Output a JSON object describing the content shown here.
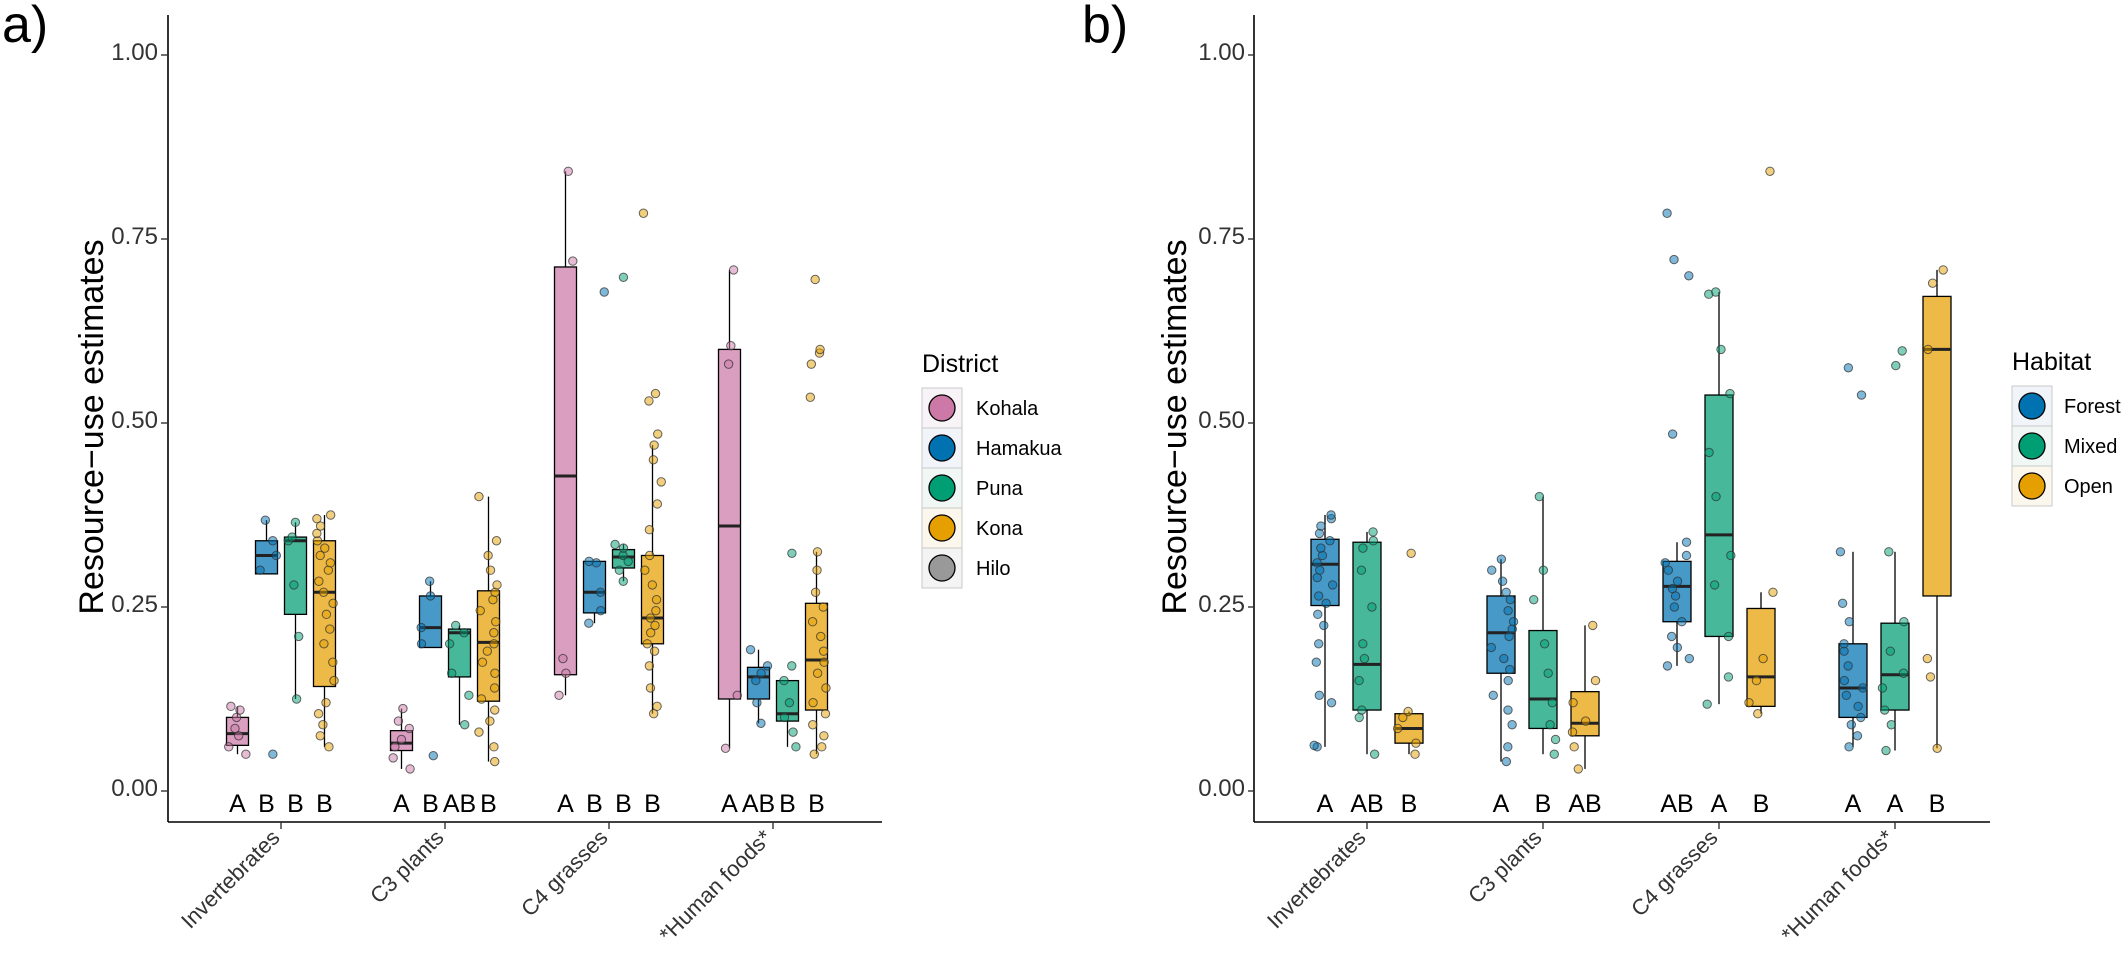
{
  "colors": {
    "Kohala": "#CC79A7",
    "Hamakua": "#0072B2",
    "Puna": "#009E73",
    "Kona": "#E69F00",
    "Hilo": "#999999",
    "Forest": "#0072B2",
    "Mixed": "#009E73",
    "Open": "#E69F00"
  },
  "chart_data": [
    {
      "panel_label": "a)",
      "type": "box",
      "ylabel": "Resource−use estimates",
      "ylim": [
        0,
        1
      ],
      "yticks": [
        "0.00",
        "0.25",
        "0.50",
        "0.75",
        "1.00"
      ],
      "categories": [
        "Invertebrates",
        "C3 plants",
        "C4 grasses",
        "*Human foods*"
      ],
      "legend": {
        "title": "District",
        "items": [
          "Kohala",
          "Hamakua",
          "Puna",
          "Kona",
          "Hilo"
        ],
        "position": "right"
      },
      "groups": [
        "Kohala",
        "Hamakua",
        "Puna",
        "Kona"
      ],
      "letters": [
        [
          "A",
          "B",
          "B",
          "B"
        ],
        [
          "A",
          "B",
          "AB",
          "B"
        ],
        [
          "A",
          "B",
          "B",
          "B"
        ],
        [
          "A",
          "AB",
          "B",
          "B"
        ]
      ],
      "boxes": [
        [
          {
            "q1": 0.062,
            "median": 0.078,
            "q3": 0.1,
            "min": 0.05,
            "max": 0.115,
            "points": [
              0.05,
              0.06,
              0.075,
              0.085,
              0.1,
              0.11,
              0.115
            ]
          },
          {
            "q1": 0.295,
            "median": 0.32,
            "q3": 0.34,
            "min": 0.295,
            "max": 0.368,
            "points": [
              0.05,
              0.3,
              0.32,
              0.34,
              0.368
            ]
          },
          {
            "q1": 0.24,
            "median": 0.34,
            "q3": 0.345,
            "min": 0.125,
            "max": 0.365,
            "points": [
              0.125,
              0.21,
              0.28,
              0.34,
              0.345,
              0.365
            ]
          },
          {
            "q1": 0.142,
            "median": 0.27,
            "q3": 0.34,
            "min": 0.06,
            "max": 0.375,
            "points": [
              0.06,
              0.075,
              0.09,
              0.105,
              0.12,
              0.15,
              0.175,
              0.2,
              0.22,
              0.24,
              0.255,
              0.27,
              0.285,
              0.3,
              0.31,
              0.32,
              0.33,
              0.34,
              0.35,
              0.36,
              0.37,
              0.375
            ]
          }
        ],
        [
          {
            "q1": 0.055,
            "median": 0.065,
            "q3": 0.082,
            "min": 0.03,
            "max": 0.112,
            "points": [
              0.03,
              0.045,
              0.06,
              0.07,
              0.085,
              0.095,
              0.112
            ]
          },
          {
            "q1": 0.195,
            "median": 0.222,
            "q3": 0.265,
            "min": 0.195,
            "max": 0.285,
            "points": [
              0.048,
              0.2,
              0.222,
              0.265,
              0.285
            ]
          },
          {
            "q1": 0.155,
            "median": 0.215,
            "q3": 0.22,
            "min": 0.09,
            "max": 0.225,
            "points": [
              0.09,
              0.13,
              0.16,
              0.2,
              0.215,
              0.225
            ]
          },
          {
            "q1": 0.122,
            "median": 0.202,
            "q3": 0.272,
            "min": 0.04,
            "max": 0.4,
            "points": [
              0.04,
              0.06,
              0.08,
              0.095,
              0.11,
              0.125,
              0.14,
              0.16,
              0.175,
              0.19,
              0.2,
              0.215,
              0.23,
              0.245,
              0.26,
              0.27,
              0.28,
              0.3,
              0.32,
              0.34,
              0.4
            ]
          }
        ],
        [
          {
            "q1": 0.158,
            "median": 0.428,
            "q3": 0.712,
            "min": 0.13,
            "max": 0.842,
            "points": [
              0.13,
              0.16,
              0.18,
              0.72,
              0.842
            ]
          },
          {
            "q1": 0.242,
            "median": 0.27,
            "q3": 0.312,
            "min": 0.228,
            "max": 0.312,
            "points": [
              0.228,
              0.245,
              0.27,
              0.31,
              0.312,
              0.678
            ]
          },
          {
            "q1": 0.303,
            "median": 0.318,
            "q3": 0.328,
            "min": 0.285,
            "max": 0.335,
            "points": [
              0.285,
              0.3,
              0.312,
              0.32,
              0.33,
              0.335,
              0.698
            ]
          },
          {
            "q1": 0.2,
            "median": 0.235,
            "q3": 0.32,
            "min": 0.105,
            "max": 0.47,
            "points": [
              0.105,
              0.115,
              0.14,
              0.17,
              0.19,
              0.2,
              0.215,
              0.225,
              0.235,
              0.245,
              0.26,
              0.28,
              0.3,
              0.32,
              0.355,
              0.39,
              0.42,
              0.45,
              0.47,
              0.485,
              0.53,
              0.54,
              0.785
            ]
          }
        ],
        [
          {
            "q1": 0.125,
            "median": 0.36,
            "q3": 0.6,
            "min": 0.058,
            "max": 0.708,
            "points": [
              0.058,
              0.13,
              0.58,
              0.605,
              0.708
            ]
          },
          {
            "q1": 0.125,
            "median": 0.155,
            "q3": 0.168,
            "min": 0.092,
            "max": 0.192,
            "points": [
              0.092,
              0.12,
              0.15,
              0.16,
              0.17,
              0.192
            ]
          },
          {
            "q1": 0.095,
            "median": 0.105,
            "q3": 0.15,
            "min": 0.06,
            "max": 0.15,
            "points": [
              0.06,
              0.08,
              0.1,
              0.12,
              0.15,
              0.17,
              0.323
            ]
          },
          {
            "q1": 0.11,
            "median": 0.178,
            "q3": 0.255,
            "min": 0.05,
            "max": 0.325,
            "points": [
              0.05,
              0.06,
              0.075,
              0.09,
              0.105,
              0.12,
              0.14,
              0.16,
              0.175,
              0.19,
              0.21,
              0.23,
              0.25,
              0.27,
              0.3,
              0.325,
              0.535,
              0.58,
              0.595,
              0.6,
              0.695
            ]
          }
        ]
      ]
    },
    {
      "panel_label": "b)",
      "type": "box",
      "ylabel": "Resource−use estimates",
      "ylim": [
        0,
        1
      ],
      "yticks": [
        "0.00",
        "0.25",
        "0.50",
        "0.75",
        "1.00"
      ],
      "categories": [
        "Invertebrates",
        "C3 plants",
        "C4 grasses",
        "*Human foods*"
      ],
      "legend": {
        "title": "Habitat",
        "items": [
          "Forest",
          "Mixed",
          "Open"
        ],
        "position": "right"
      },
      "groups": [
        "Forest",
        "Mixed",
        "Open"
      ],
      "letters": [
        [
          "A",
          "AB",
          "B"
        ],
        [
          "A",
          "B",
          "AB"
        ],
        [
          "AB",
          "A",
          "B"
        ],
        [
          "A",
          "A",
          "B"
        ]
      ],
      "boxes": [
        [
          {
            "q1": 0.252,
            "median": 0.308,
            "q3": 0.342,
            "min": 0.06,
            "max": 0.375,
            "points": [
              0.06,
              0.062,
              0.12,
              0.13,
              0.175,
              0.2,
              0.225,
              0.24,
              0.255,
              0.265,
              0.28,
              0.29,
              0.3,
              0.31,
              0.32,
              0.33,
              0.34,
              0.35,
              0.36,
              0.37,
              0.375
            ]
          },
          {
            "q1": 0.11,
            "median": 0.172,
            "q3": 0.338,
            "min": 0.05,
            "max": 0.352,
            "points": [
              0.05,
              0.1,
              0.11,
              0.15,
              0.18,
              0.2,
              0.25,
              0.3,
              0.33,
              0.34,
              0.352
            ]
          },
          {
            "q1": 0.065,
            "median": 0.085,
            "q3": 0.105,
            "min": 0.05,
            "max": 0.108,
            "points": [
              0.05,
              0.065,
              0.085,
              0.1,
              0.108,
              0.323
            ]
          }
        ],
        [
          {
            "q1": 0.16,
            "median": 0.215,
            "q3": 0.265,
            "min": 0.04,
            "max": 0.315,
            "points": [
              0.04,
              0.06,
              0.09,
              0.11,
              0.13,
              0.15,
              0.165,
              0.18,
              0.195,
              0.21,
              0.22,
              0.23,
              0.245,
              0.26,
              0.27,
              0.285,
              0.3,
              0.315
            ]
          },
          {
            "q1": 0.085,
            "median": 0.125,
            "q3": 0.218,
            "min": 0.05,
            "max": 0.4,
            "points": [
              0.05,
              0.07,
              0.09,
              0.12,
              0.16,
              0.2,
              0.26,
              0.3,
              0.4
            ]
          },
          {
            "q1": 0.075,
            "median": 0.092,
            "q3": 0.135,
            "min": 0.03,
            "max": 0.225,
            "points": [
              0.03,
              0.06,
              0.08,
              0.095,
              0.12,
              0.15,
              0.225
            ]
          }
        ],
        [
          {
            "q1": 0.23,
            "median": 0.278,
            "q3": 0.312,
            "min": 0.17,
            "max": 0.338,
            "points": [
              0.17,
              0.18,
              0.195,
              0.21,
              0.23,
              0.25,
              0.265,
              0.275,
              0.285,
              0.3,
              0.31,
              0.32,
              0.338,
              0.485,
              0.7,
              0.722,
              0.785
            ]
          },
          {
            "q1": 0.21,
            "median": 0.348,
            "q3": 0.538,
            "min": 0.118,
            "max": 0.678,
            "points": [
              0.118,
              0.155,
              0.21,
              0.28,
              0.32,
              0.4,
              0.46,
              0.54,
              0.6,
              0.675,
              0.678
            ]
          },
          {
            "q1": 0.115,
            "median": 0.155,
            "q3": 0.248,
            "min": 0.105,
            "max": 0.27,
            "points": [
              0.105,
              0.12,
              0.15,
              0.18,
              0.27,
              0.842
            ]
          }
        ],
        [
          {
            "q1": 0.1,
            "median": 0.14,
            "q3": 0.2,
            "min": 0.06,
            "max": 0.325,
            "points": [
              0.06,
              0.075,
              0.09,
              0.1,
              0.115,
              0.13,
              0.14,
              0.15,
              0.17,
              0.19,
              0.2,
              0.23,
              0.255,
              0.325,
              0.538,
              0.575
            ]
          },
          {
            "q1": 0.11,
            "median": 0.158,
            "q3": 0.228,
            "min": 0.055,
            "max": 0.325,
            "points": [
              0.055,
              0.09,
              0.11,
              0.14,
              0.16,
              0.19,
              0.23,
              0.325,
              0.578,
              0.598
            ]
          },
          {
            "q1": 0.265,
            "median": 0.6,
            "q3": 0.672,
            "min": 0.058,
            "max": 0.708,
            "points": [
              0.058,
              0.155,
              0.18,
              0.6,
              0.69,
              0.708
            ]
          }
        ]
      ]
    }
  ]
}
